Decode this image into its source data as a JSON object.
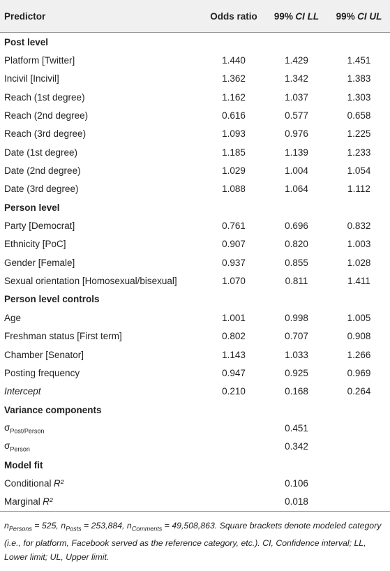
{
  "table": {
    "header": [
      {
        "text": "Predictor"
      },
      {
        "text": "Odds ratio"
      },
      {
        "text": "99%",
        "italic": "CI LL"
      },
      {
        "text": "99%",
        "italic": "CI UL"
      }
    ],
    "rows": [
      {
        "section": "Post level"
      },
      {
        "label": "Platform [Twitter]",
        "values": [
          "1.440",
          "1.429",
          "1.451"
        ]
      },
      {
        "label": "Incivil [Incivil]",
        "values": [
          "1.362",
          "1.342",
          "1.383"
        ]
      },
      {
        "label": "Reach (1st degree)",
        "values": [
          "1.162",
          "1.037",
          "1.303"
        ]
      },
      {
        "label": "Reach (2nd degree)",
        "values": [
          "0.616",
          "0.577",
          "0.658"
        ]
      },
      {
        "label": "Reach (3rd degree)",
        "values": [
          "1.093",
          "0.976",
          "1.225"
        ]
      },
      {
        "label": "Date (1st degree)",
        "values": [
          "1.185",
          "1.139",
          "1.233"
        ]
      },
      {
        "label": "Date (2nd degree)",
        "values": [
          "1.029",
          "1.004",
          "1.054"
        ]
      },
      {
        "label": "Date (3rd degree)",
        "values": [
          "1.088",
          "1.064",
          "1.112"
        ]
      },
      {
        "section": "Person level"
      },
      {
        "label": "Party [Democrat]",
        "values": [
          "0.761",
          "0.696",
          "0.832"
        ]
      },
      {
        "label": "Ethnicity [PoC]",
        "values": [
          "0.907",
          "0.820",
          "1.003"
        ]
      },
      {
        "label": "Gender [Female]",
        "values": [
          "0.937",
          "0.855",
          "1.028"
        ]
      },
      {
        "label": "Sexual orientation [Homosexual/bisexual]",
        "values": [
          "1.070",
          "0.811",
          "1.411"
        ]
      },
      {
        "section": "Person level controls"
      },
      {
        "label": "Age",
        "values": [
          "1.001",
          "0.998",
          "1.005"
        ]
      },
      {
        "label": "Freshman status [First term]",
        "values": [
          "0.802",
          "0.707",
          "0.908"
        ]
      },
      {
        "label": "Chamber [Senator]",
        "values": [
          "1.143",
          "1.033",
          "1.266"
        ]
      },
      {
        "label": "Posting frequency",
        "values": [
          "0.947",
          "0.925",
          "0.969"
        ]
      },
      {
        "label": {
          "italic": "Intercept"
        },
        "values": [
          "0.210",
          "0.168",
          "0.264"
        ]
      },
      {
        "section": "Variance components"
      },
      {
        "label": {
          "text": "σ",
          "sub": "Post/Person"
        },
        "values": [
          null,
          "0.451",
          null
        ]
      },
      {
        "label": {
          "text": "σ",
          "sub": "Person"
        },
        "values": [
          null,
          "0.342",
          null
        ]
      },
      {
        "section": "Model fit"
      },
      {
        "label": {
          "text": "Conditional",
          "italic": "R²"
        },
        "values": [
          null,
          "0.106",
          null
        ]
      },
      {
        "label": {
          "text": "Marginal",
          "italic": "R²"
        },
        "values": [
          null,
          "0.018",
          null
        ]
      }
    ],
    "note": [
      {
        "text": "n"
      },
      {
        "text": "Persons",
        "sub": true
      },
      {
        "text": " = 525, n"
      },
      {
        "text": "Posts",
        "sub": true
      },
      {
        "text": " = 253,884, n"
      },
      {
        "text": "Comments",
        "sub": true
      },
      {
        "text": " = 49,508,863. Square brackets denote modeled category (i.e., for platform, Facebook served as the reference category, etc.). CI, Confidence interval; LL, Lower limit; UL, Upper limit."
      }
    ]
  }
}
